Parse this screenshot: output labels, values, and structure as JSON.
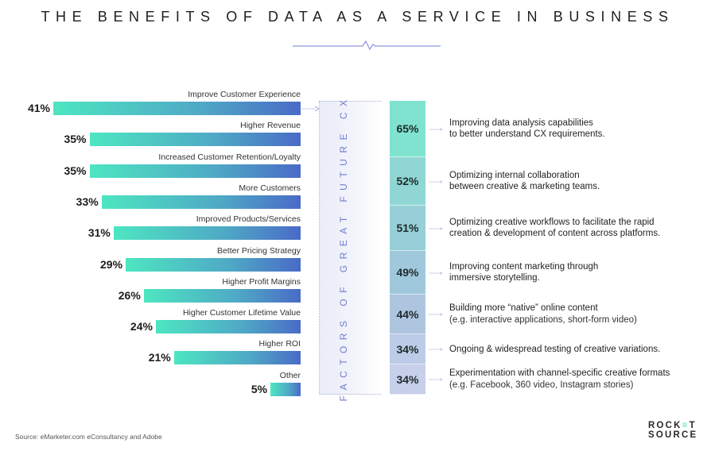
{
  "title": "THE BENEFITS OF DATA AS A SERVICE IN BUSINESS",
  "colors": {
    "bar_start": "#4de6c1",
    "bar_end": "#4a6bc7",
    "factor_label": "#6f7bd0",
    "logo_accent": "#3fd8b3"
  },
  "chart_data": [
    {
      "type": "bar",
      "orientation": "horizontal",
      "title": "The Benefits of Data as a Service in Business",
      "categories": [
        "Improve Customer Experience",
        "Higher Revenue",
        "Increased Customer Retention/Loyalty",
        "More Customers",
        "Improved Products/Services",
        "Better Pricing Strategy",
        "Higher Profit Margins",
        "Higher Customer Lifetime Value",
        "Higher ROI",
        "Other"
      ],
      "values": [
        41,
        35,
        35,
        33,
        31,
        29,
        26,
        24,
        21,
        5
      ],
      "value_labels": [
        "41%",
        "35%",
        "35%",
        "33%",
        "31%",
        "29%",
        "26%",
        "24%",
        "21%",
        "5%"
      ],
      "unit": "%",
      "xlim": [
        0,
        41
      ],
      "grid": false,
      "legend": "none"
    },
    {
      "type": "table",
      "title": "FACTORS OF GREAT FUTURE CX",
      "rows": [
        {
          "value": 65,
          "label": "65%",
          "line1": "Improving data analysis capabilities",
          "line2": "to better understand CX requirements.",
          "sub": false
        },
        {
          "value": 52,
          "label": "52%",
          "line1": "Optimizing internal collaboration",
          "line2": "between creative & marketing teams.",
          "sub": false
        },
        {
          "value": 51,
          "label": "51%",
          "line1": "Optimizing creative workflows to facilitate the rapid",
          "line2": "creation & development of content across platforms.",
          "sub": false
        },
        {
          "value": 49,
          "label": "49%",
          "line1": "Improving content marketing through",
          "line2": "immersive storytelling.",
          "sub": false
        },
        {
          "value": 44,
          "label": "44%",
          "line1": "Building more “native” online content",
          "line2": "(e.g. interactive applications, short-form video)",
          "sub": true
        },
        {
          "value": 34,
          "label": "34%",
          "line1": "Ongoing & widespread testing of creative variations.",
          "line2": "",
          "sub": false
        },
        {
          "value": 34,
          "label": "34%",
          "line1": "Experimentation with channel-specific creative formats",
          "line2": "(e.g. Facebook, 360 video, Instagram stories)",
          "sub": true
        }
      ],
      "segment_colors": [
        "#7fe3cf",
        "#8fd6d4",
        "#96cfd8",
        "#a0c8dc",
        "#aec5e0",
        "#bccbe7",
        "#c7cfeb"
      ]
    }
  ],
  "factor_label": "FACTORS OF GREAT FUTURE CX",
  "source": "Source: eMarketer.com eConsultancy and Adobe",
  "logo": {
    "line1_a": "ROCK",
    "line1_accent": "≡",
    "line1_b": "T",
    "line2": "SOURCE"
  }
}
